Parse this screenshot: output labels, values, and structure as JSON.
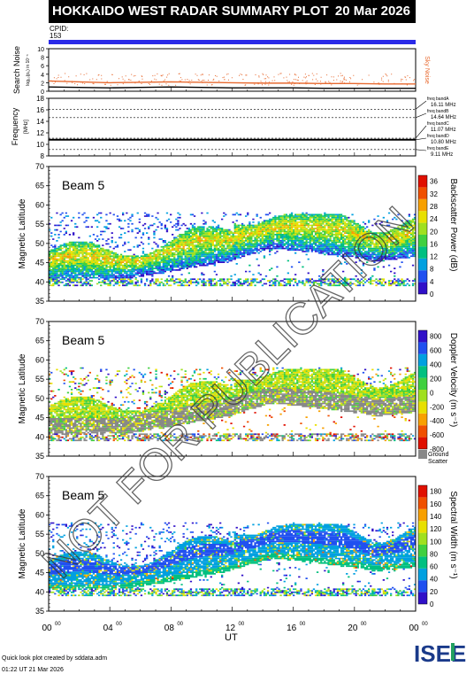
{
  "header": {
    "title": "HOKKAIDO WEST RADAR SUMMARY PLOT",
    "date": "20 Mar 2026",
    "cpid_label": "CPID:",
    "cpid_value": "153"
  },
  "colors": {
    "blue": "#2a2ae8",
    "red": "#ff3a1a",
    "ground_scatter": "#888888",
    "noise_line": "#e86a30"
  },
  "chart_data": [
    {
      "type": "line",
      "panel": "search-noise",
      "ylabel": "Search Noise",
      "ylabel_sub": "log₁₀(p₀) in 10⁻⁵",
      "ylim": [
        0,
        10
      ],
      "yticks": [
        "0",
        "2",
        "4",
        "6",
        "8",
        "10"
      ],
      "legend": "Sky Noise",
      "x": [
        0,
        2,
        4,
        6,
        8,
        10,
        12,
        14,
        16,
        18,
        20,
        22,
        24
      ],
      "sky_noise": [
        2.4,
        2.2,
        2.0,
        2.1,
        2.2,
        2.1,
        2.0,
        1.9,
        1.9,
        1.8,
        1.8,
        1.7,
        1.7
      ],
      "search_noise": [
        1.0,
        0.9,
        0.8,
        0.9,
        1.0,
        0.9,
        0.8,
        0.8,
        0.8,
        0.7,
        0.7,
        0.7,
        0.7
      ]
    },
    {
      "type": "line",
      "panel": "frequency",
      "ylabel": "Frequency",
      "ylabel_sub": "[MHz]",
      "ylim": [
        8,
        18
      ],
      "yticks": [
        "8",
        "10",
        "12",
        "14",
        "16",
        "18"
      ],
      "bands": [
        {
          "label": "freq bandA",
          "value": "16.11 MHz",
          "mhz": 16.11
        },
        {
          "label": "freq bandB",
          "value": "14.64 MHz",
          "mhz": 14.64
        },
        {
          "label": "freq bandC",
          "value": "11.07 MHz",
          "mhz": 11.07
        },
        {
          "label": "freq bandD",
          "value": "10.80 MHz",
          "mhz": 10.8
        },
        {
          "label": "freq bandE",
          "value": "9.11 MHz",
          "mhz": 9.11
        }
      ],
      "operating_mhz": 10.8
    },
    {
      "type": "heatmap",
      "panel": "power",
      "beam_label": "Beam  5",
      "ylabel": "Magnetic Latitude",
      "ylim": [
        35,
        70
      ],
      "yticks": [
        "35",
        "40",
        "45",
        "50",
        "55",
        "60",
        "65",
        "70"
      ],
      "colorbar_label": "Backscatter Power (dB)",
      "colorbar_ticks": [
        "0",
        "4",
        "8",
        "12",
        "16",
        "20",
        "24",
        "28",
        "32",
        "36"
      ],
      "colorbar_range": [
        0,
        36
      ],
      "palette": [
        "#3010c8",
        "#2050f0",
        "#00a0e0",
        "#00c080",
        "#40d040",
        "#a0e020",
        "#e8e000",
        "#f8a000",
        "#f05000",
        "#e01000"
      ]
    },
    {
      "type": "heatmap",
      "panel": "velocity",
      "beam_label": "Beam  5",
      "ylabel": "Magnetic Latitude",
      "ylim": [
        35,
        70
      ],
      "yticks": [
        "35",
        "40",
        "45",
        "50",
        "55",
        "60",
        "65",
        "70"
      ],
      "colorbar_label": "Doppler Velocity (m s⁻¹)",
      "colorbar_ticks": [
        "800",
        "600",
        "400",
        "200",
        "0",
        "-200",
        "-400",
        "-600",
        "-800"
      ],
      "colorbar_range": [
        -800,
        800
      ],
      "ground_scatter_label": "Ground",
      "ground_scatter_label2": "Scatter",
      "palette": [
        "#e01000",
        "#f05000",
        "#f8a000",
        "#e8e000",
        "#a0e020",
        "#40d040",
        "#00c080",
        "#00a0e0",
        "#2050f0",
        "#3010c8"
      ]
    },
    {
      "type": "heatmap",
      "panel": "width",
      "beam_label": "Beam  5",
      "ylabel": "Magnetic Latitude",
      "ylim": [
        35,
        70
      ],
      "yticks": [
        "35",
        "40",
        "45",
        "50",
        "55",
        "60",
        "65",
        "70"
      ],
      "colorbar_label": "Spectral Width (m s⁻¹)",
      "colorbar_ticks": [
        "0",
        "20",
        "40",
        "60",
        "80",
        "100",
        "120",
        "140",
        "160",
        "180"
      ],
      "colorbar_range": [
        0,
        180
      ],
      "palette": [
        "#3010c8",
        "#2050f0",
        "#00a0e0",
        "#00c080",
        "#40d040",
        "#a0e020",
        "#e8e000",
        "#f8a000",
        "#f05000",
        "#e01000"
      ]
    }
  ],
  "xaxis": {
    "label": "UT",
    "ticks": [
      "00",
      "04",
      "08",
      "12",
      "16",
      "20",
      "00"
    ],
    "tick_sup": "00",
    "range": [
      0,
      24
    ]
  },
  "watermark": "NOT FOR PUBLICATION",
  "footer": {
    "credit": "Quick look plot created by sddata.adm",
    "time": "01:22 UT 21 Mar 2026"
  },
  "logo": {
    "text": "ISEE"
  }
}
